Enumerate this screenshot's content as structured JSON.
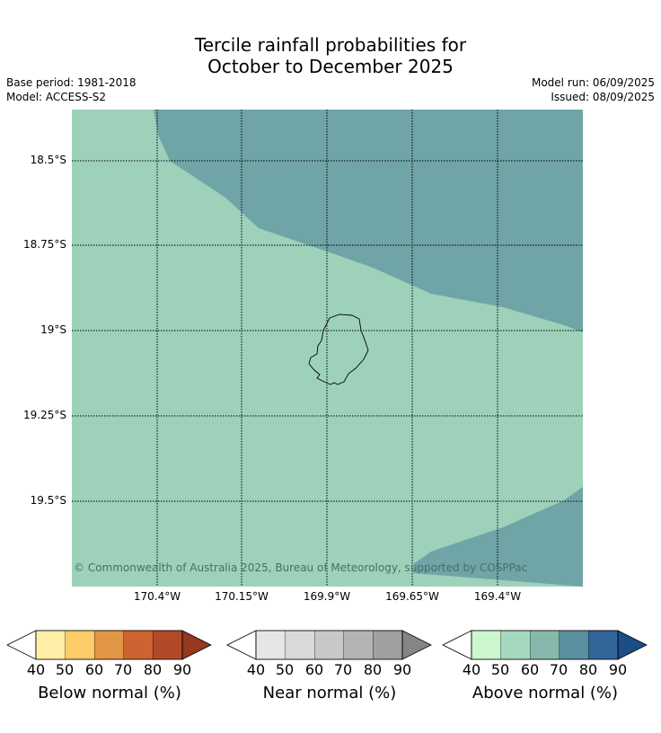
{
  "title": {
    "line1": "Tercile rainfall probabilities for",
    "line2": "October to December 2025"
  },
  "meta": {
    "base_period": "Base period: 1981-2018",
    "model": "Model: ACCESS-S2",
    "model_run": "Model run: 06/09/2025",
    "issued": "Issued: 08/09/2025"
  },
  "map": {
    "latitude_labels": [
      "18.5°S",
      "18.75°S",
      "19°S",
      "19.25°S",
      "19.5°S"
    ],
    "longitude_labels": [
      "170.4°W",
      "170.15°W",
      "169.9°W",
      "169.65°W",
      "169.4°W"
    ],
    "copyright": "© Commonwealth of Australia 2025, Bureau of Meteorology, supported by COSPPac",
    "colors": {
      "above_50_60": "#9ed1ba",
      "above_60_70": "#6fa5a7",
      "coastline": "#000000"
    }
  },
  "legends": [
    {
      "label": "Below normal (%)",
      "ticks": [
        "40",
        "50",
        "60",
        "70",
        "80",
        "90"
      ],
      "under_color": "#ffffff",
      "colors": [
        "#ffeea6",
        "#fecd69",
        "#e19645",
        "#ce6230",
        "#b24a27"
      ],
      "over_color": "#963720"
    },
    {
      "label": "Near normal (%)",
      "ticks": [
        "40",
        "50",
        "60",
        "70",
        "80",
        "90"
      ],
      "under_color": "#ffffff",
      "colors": [
        "#e6e6e6",
        "#d9d9d9",
        "#c8c8c8",
        "#b4b4b4",
        "#a0a0a0"
      ],
      "over_color": "#858585"
    },
    {
      "label": "Above normal (%)",
      "ticks": [
        "40",
        "50",
        "60",
        "70",
        "80",
        "90"
      ],
      "under_color": "#ffffff",
      "colors": [
        "#ccf7cf",
        "#a4d8bf",
        "#86b9ab",
        "#5a8fa0",
        "#32669b"
      ],
      "over_color": "#1b4d87"
    }
  ]
}
